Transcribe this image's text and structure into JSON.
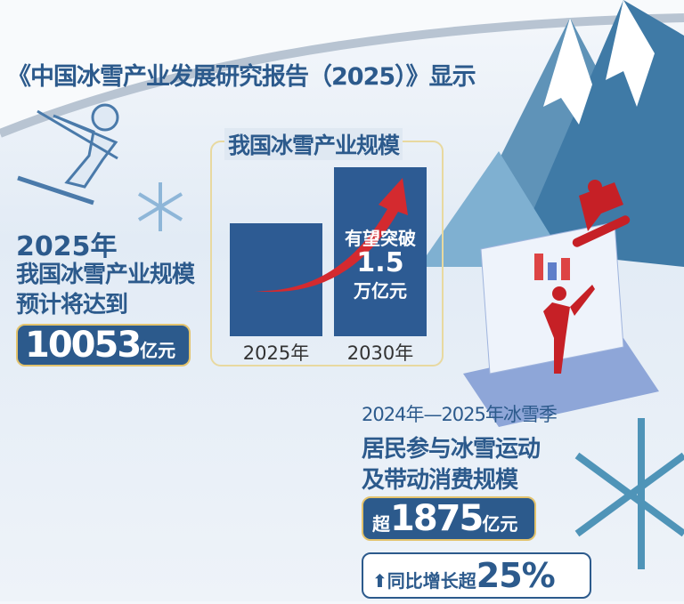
{
  "header": {
    "title": "《中国冰雪产业发展研究报告（2025）》显示"
  },
  "left": {
    "year": "2025年",
    "line1": "我国冰雪产业规模",
    "line2": "预计将达到",
    "value": "10053",
    "unit": "亿元"
  },
  "chart_data": {
    "type": "bar",
    "title": "我国冰雪产业规模",
    "categories": [
      "2025年",
      "2030年"
    ],
    "values": [
      10053,
      15000
    ],
    "unit": "亿元",
    "annotation": {
      "line1": "有望突破",
      "line2": "1.5",
      "line3": "万亿元"
    },
    "ylim": [
      0,
      15000
    ],
    "grid": false,
    "bar_color": "#2d5b93",
    "arrow_color": "#d42a2f"
  },
  "right": {
    "season": "2024年—2025年冰雪季",
    "line1": "居民参与冰雪运动",
    "line2": "及带动消费规模",
    "prefix": "超",
    "value": "1875",
    "unit": "亿元",
    "growth_label": "同比增长超",
    "growth_value": "25%"
  },
  "colors": {
    "primary": "#2c5a8c",
    "gold": "#e3c36d",
    "red": "#d42a2f"
  }
}
